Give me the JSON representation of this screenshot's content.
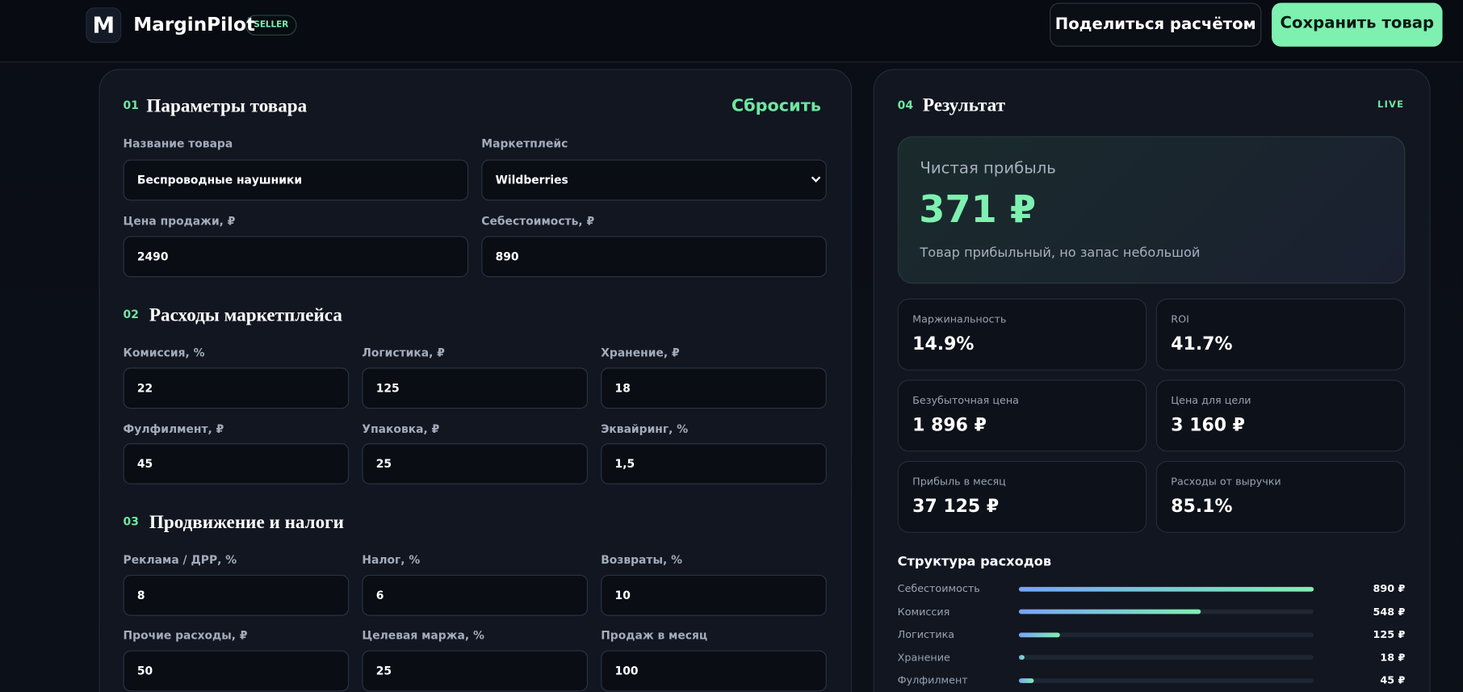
{
  "header": {
    "logo": "M",
    "brand": "MarginPilot",
    "badge": "SELLER",
    "share_button": "Поделиться расчётом",
    "save_button": "Сохранить товар"
  },
  "params": {
    "number": "01",
    "title": "Параметры товара",
    "reset": "Сбросить",
    "fields": [
      {
        "label": "Название товара",
        "value": "Беспроводные наушники"
      },
      {
        "label": "Маркетплейс",
        "value": "Wildberries"
      },
      {
        "label": "Цена продажи, ₽",
        "value": "2490"
      },
      {
        "label": "Себестоимость, ₽",
        "value": "890"
      }
    ]
  },
  "marketplace_costs": {
    "number": "02",
    "title": "Расходы маркетплейса",
    "fields": [
      {
        "label": "Комиссия, %",
        "value": "22"
      },
      {
        "label": "Логистика, ₽",
        "value": "125"
      },
      {
        "label": "Хранение, ₽",
        "value": "18"
      },
      {
        "label": "Фулфилмент, ₽",
        "value": "45"
      },
      {
        "label": "Упаковка, ₽",
        "value": "25"
      },
      {
        "label": "Эквайринг, %",
        "value": "1,5"
      }
    ]
  },
  "promotion": {
    "number": "03",
    "title": "Продвижение и налоги",
    "fields": [
      {
        "label": "Реклама / ДРР, %",
        "value": "8"
      },
      {
        "label": "Налог, %",
        "value": "6"
      },
      {
        "label": "Возвраты, %",
        "value": "10"
      },
      {
        "label": "Прочие расходы, ₽",
        "value": "50"
      },
      {
        "label": "Целевая маржа, %",
        "value": "25"
      },
      {
        "label": "Продаж в месяц",
        "value": "100"
      }
    ]
  },
  "result": {
    "number": "04",
    "title": "Результат",
    "badge": "LIVE",
    "profit": {
      "label": "Чистая прибыль",
      "value": "371 ₽",
      "note": "Товар прибыльный, но запас небольшой"
    },
    "metrics": [
      {
        "label": "Маржинальность",
        "value": "14.9%"
      },
      {
        "label": "ROI",
        "value": "41.7%"
      },
      {
        "label": "Безубыточная цена",
        "value": "1 896 ₽"
      },
      {
        "label": "Цена для цели",
        "value": "3 160 ₽"
      },
      {
        "label": "Прибыль в месяц",
        "value": "37 125 ₽"
      },
      {
        "label": "Расходы от выручки",
        "value": "85.1%"
      }
    ],
    "structure": {
      "title": "Структура расходов",
      "items": [
        {
          "name": "Себестоимость",
          "value": 890,
          "value_label": "890 ₽"
        },
        {
          "name": "Комиссия",
          "value": 548,
          "value_label": "548 ₽"
        },
        {
          "name": "Логистика",
          "value": 125,
          "value_label": "125 ₽"
        },
        {
          "name": "Хранение",
          "value": 18,
          "value_label": "18 ₽"
        },
        {
          "name": "Фулфилмент",
          "value": 45,
          "value_label": "45 ₽"
        }
      ]
    }
  }
}
